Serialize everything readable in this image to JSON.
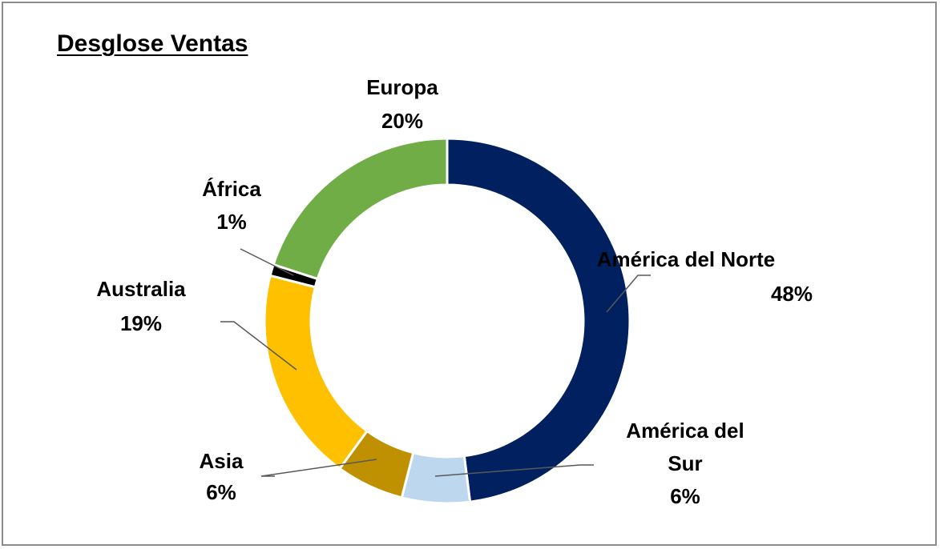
{
  "chart_data": {
    "type": "pie",
    "subtype": "donut",
    "title": "Desglose Ventas",
    "slices": [
      {
        "label": "América del Norte",
        "value": 48,
        "value_label": "48%",
        "color": "#002060"
      },
      {
        "label": "América del Sur",
        "value": 6,
        "value_label": "6%",
        "color": "#BDD7EE"
      },
      {
        "label": "Asia",
        "value": 6,
        "value_label": "6%",
        "color": "#BF9000"
      },
      {
        "label": "Australia",
        "value": 19,
        "value_label": "19%",
        "color": "#FFC000"
      },
      {
        "label": "África",
        "value": 1,
        "value_label": "1%",
        "color": "#000000"
      },
      {
        "label": "Europa",
        "value": 20,
        "value_label": "20%",
        "color": "#70AD47"
      }
    ],
    "start_angle": "12 o'clock",
    "direction": "clockwise",
    "legend": "none",
    "data_labels": "outside with leader lines"
  }
}
